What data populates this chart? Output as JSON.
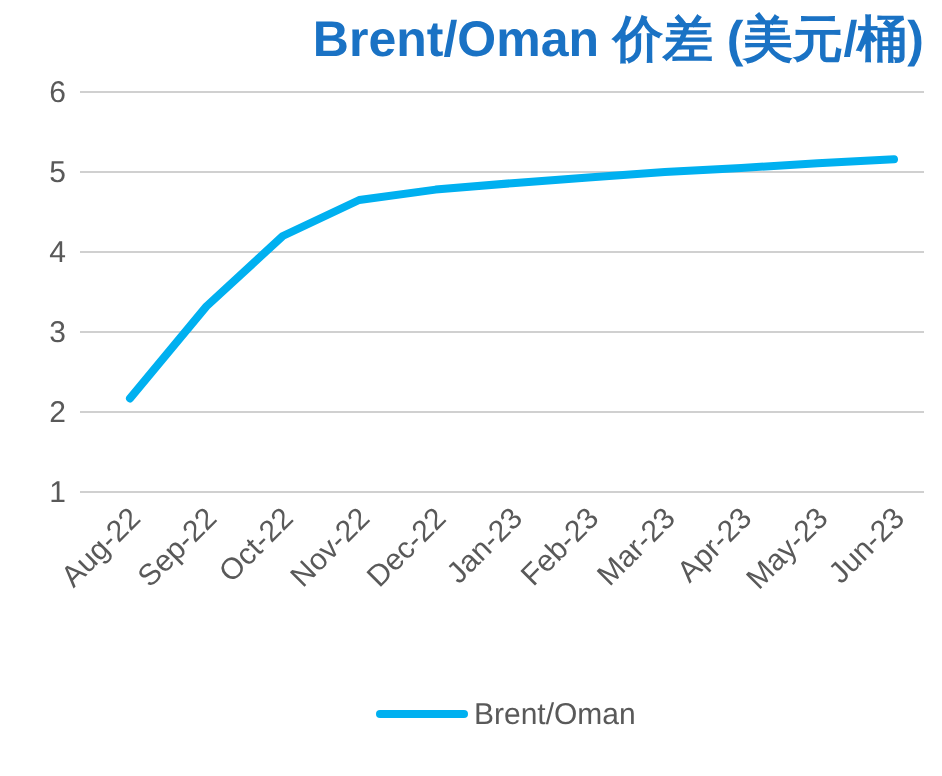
{
  "chart_data": {
    "type": "line",
    "title": "Brent/Oman 价差 (美元/桶)",
    "categories": [
      "Aug-22",
      "Sep-22",
      "Oct-22",
      "Nov-22",
      "Dec-22",
      "Jan-23",
      "Feb-23",
      "Mar-23",
      "Apr-23",
      "May-23",
      "Jun-23"
    ],
    "series": [
      {
        "name": "Brent/Oman",
        "color": "#00b0f0",
        "values": [
          2.17,
          3.32,
          4.2,
          4.65,
          4.78,
          4.86,
          4.93,
          5.0,
          5.05,
          5.11,
          5.16
        ]
      }
    ],
    "ylim": [
      1,
      6
    ],
    "yticks": [
      1,
      2,
      3,
      4,
      5,
      6
    ],
    "grid": "y",
    "legend": "bottom",
    "marker": "none",
    "line_style": "solid"
  }
}
